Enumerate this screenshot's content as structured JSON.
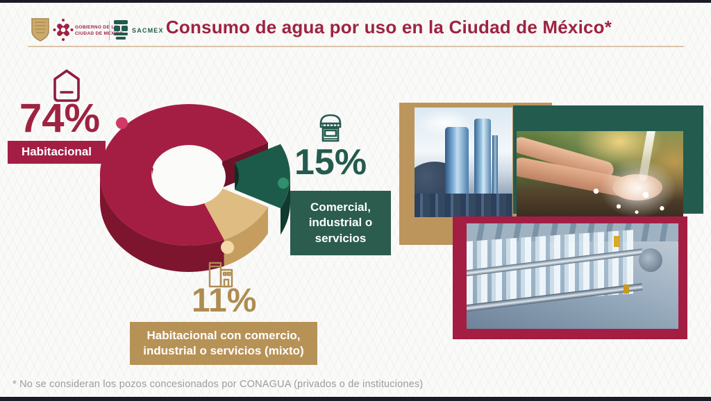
{
  "header": {
    "title": "Consumo de agua por uso en la Ciudad de México*",
    "gobierno_line1": "GOBIERNO DE LA",
    "gobierno_line2": "CIUDAD DE MÉXICO",
    "sacmex_label": "SACMEX"
  },
  "chart_data": {
    "type": "pie",
    "subtype": "3d-exploded-donut",
    "title": "Consumo de agua por uso en la Ciudad de México",
    "unit": "percent",
    "categories": [
      "Habitacional",
      "Comercial, industrial o servicios",
      "Habitacional con comercio, industrial o servicios (mixto)"
    ],
    "values": [
      74,
      15,
      11
    ],
    "colors": [
      "#A41E44",
      "#1C5B4A",
      "#DFBC82"
    ],
    "side_colors": [
      "#7E152F",
      "#113A2F",
      "#C59E5F"
    ],
    "cut_colors": [
      "#6E1229",
      "#0E2F26",
      "#B88F4E"
    ],
    "wall_colors": [
      "#8E2142",
      "#2E7A63",
      "#ECD5A4"
    ],
    "marker_colors": [
      "#D13A66",
      "#2F8F6E",
      "#F2D9A6"
    ],
    "exploded_index": 1,
    "hole_ratio": 0.42,
    "legend_position": "callouts"
  },
  "callouts": {
    "residential": {
      "pct": "74%",
      "box_label": "Habitacional"
    },
    "commercial": {
      "pct": "15%",
      "line1": "Comercial,",
      "line2": "industrial o",
      "line3": "servicios"
    },
    "mixed": {
      "pct": "11%",
      "line1": "Habitacional con comercio,",
      "line2": "industrial o servicios (mixto)"
    }
  },
  "images": [
    {
      "name": "water-treatment-plant-photo"
    },
    {
      "name": "hands-catching-water-photo"
    },
    {
      "name": "water-bottling-line-photo"
    }
  ],
  "footnote": "* No se consideran los pozos concesionados por CONAGUA (privados o de instituciones)",
  "colors": {
    "maroon": "#9F2241",
    "green": "#235B4E",
    "gold": "#BC955C",
    "footnote_gray": "#9C9C9C",
    "edge_bar": "#1B1B25"
  }
}
